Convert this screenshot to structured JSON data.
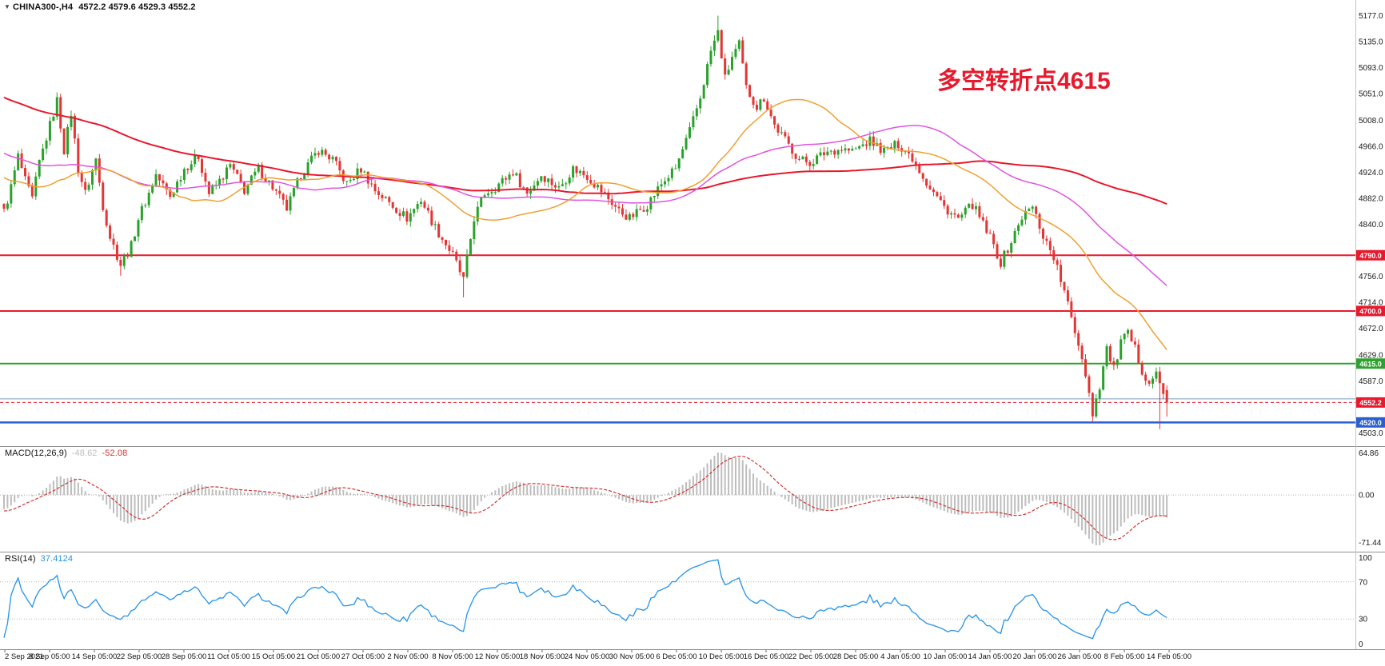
{
  "header": {
    "marker": "▼",
    "symbol": "CHINA300-,H4",
    "ohlc_text": "4572.2 4579.6 4529.3 4552.2"
  },
  "annotation": {
    "text": "多空转折点4615",
    "color": "#e8192c"
  },
  "chart_data": {
    "type": "candlestick",
    "symbol": "CHINA300",
    "timeframe": "H4",
    "last_bar": {
      "open": 4572.2,
      "high": 4579.6,
      "low": 4529.3,
      "close": 4552.2
    },
    "price_axis": {
      "range": [
        4492,
        5192
      ],
      "tick_labels": [
        "5177.0",
        "5135.0",
        "5093.0",
        "5051.0",
        "5008.0",
        "4966.0",
        "4924.0",
        "4882.0",
        "4840.0",
        "4756.0",
        "4714.0",
        "4672.0",
        "4629.0",
        "4587.0",
        "4503.0"
      ]
    },
    "horizontal_lines": [
      {
        "price": 4790.0,
        "color": "#e8192c",
        "width": 2,
        "label": "4790.0"
      },
      {
        "price": 4700.0,
        "color": "#e8192c",
        "width": 2,
        "label": "4700.0"
      },
      {
        "price": 4615.0,
        "color": "#2fa12f",
        "width": 2,
        "label": "4615.0"
      },
      {
        "price": 4558.0,
        "color": "#7b9cc4",
        "width": 1,
        "label": ""
      },
      {
        "price": 4520.0,
        "color": "#2a5fd0",
        "width": 2.5,
        "label": "4520.0"
      }
    ],
    "current_price": {
      "value": 4552.2,
      "label": "4552.2",
      "color": "#e8192c"
    },
    "time_axis_labels": [
      "2 Sep 2021",
      "8 Sep 05:00",
      "14 Sep 05:00",
      "22 Sep 05:00",
      "28 Sep 05:00",
      "11 Oct 05:00",
      "15 Oct 05:00",
      "21 Oct 05:00",
      "27 Oct 05:00",
      "2 Nov 05:00",
      "8 Nov 05:00",
      "12 Nov 05:00",
      "18 Nov 05:00",
      "24 Nov 05:00",
      "30 Nov 05:00",
      "6 Dec 05:00",
      "10 Dec 05:00",
      "16 Dec 05:00",
      "22 Dec 05:00",
      "28 Dec 05:00",
      "4 Jan 05:00",
      "10 Jan 05:00",
      "14 Jan 05:00",
      "20 Jan 05:00",
      "26 Jan 05:00",
      "8 Feb 05:00",
      "14 Feb 05:00"
    ],
    "candles": {
      "count": 330,
      "up_color": "#2aa12a",
      "down_color": "#e23535",
      "noise_amplitude": 8,
      "wick_extra": 9,
      "close_waypoints": [
        [
          0,
          4860
        ],
        [
          2,
          4900
        ],
        [
          4,
          4950
        ],
        [
          6,
          4910
        ],
        [
          8,
          4880
        ],
        [
          10,
          4940
        ],
        [
          13,
          5000
        ],
        [
          15,
          5040
        ],
        [
          17,
          4960
        ],
        [
          19,
          5020
        ],
        [
          21,
          4930
        ],
        [
          23,
          4890
        ],
        [
          26,
          4945
        ],
        [
          28,
          4870
        ],
        [
          30,
          4820
        ],
        [
          33,
          4775
        ],
        [
          36,
          4805
        ],
        [
          38,
          4850
        ],
        [
          41,
          4890
        ],
        [
          43,
          4920
        ],
        [
          47,
          4885
        ],
        [
          51,
          4930
        ],
        [
          55,
          4950
        ],
        [
          58,
          4890
        ],
        [
          61,
          4910
        ],
        [
          64,
          4935
        ],
        [
          68,
          4895
        ],
        [
          72,
          4930
        ],
        [
          76,
          4900
        ],
        [
          80,
          4865
        ],
        [
          84,
          4920
        ],
        [
          89,
          4960
        ],
        [
          93,
          4945
        ],
        [
          97,
          4905
        ],
        [
          101,
          4930
        ],
        [
          105,
          4895
        ],
        [
          109,
          4875
        ],
        [
          114,
          4850
        ],
        [
          118,
          4880
        ],
        [
          122,
          4835
        ],
        [
          127,
          4790
        ],
        [
          130,
          4750
        ],
        [
          133,
          4850
        ],
        [
          136,
          4890
        ],
        [
          139,
          4900
        ],
        [
          144,
          4925
        ],
        [
          148,
          4890
        ],
        [
          152,
          4920
        ],
        [
          157,
          4898
        ],
        [
          161,
          4930
        ],
        [
          165,
          4918
        ],
        [
          170,
          4888
        ],
        [
          174,
          4862
        ],
        [
          177,
          4850
        ],
        [
          182,
          4872
        ],
        [
          186,
          4905
        ],
        [
          190,
          4930
        ],
        [
          194,
          4990
        ],
        [
          197,
          5045
        ],
        [
          200,
          5120
        ],
        [
          202,
          5150
        ],
        [
          204,
          5075
        ],
        [
          206,
          5110
        ],
        [
          208,
          5130
        ],
        [
          210,
          5060
        ],
        [
          213,
          5030
        ],
        [
          215,
          5045
        ],
        [
          218,
          5000
        ],
        [
          222,
          4968
        ],
        [
          225,
          4945
        ],
        [
          228,
          4940
        ],
        [
          233,
          4958
        ],
        [
          237,
          4962
        ],
        [
          240,
          4958
        ],
        [
          245,
          4975
        ],
        [
          249,
          4958
        ],
        [
          253,
          4970
        ],
        [
          257,
          4948
        ],
        [
          261,
          4908
        ],
        [
          266,
          4868
        ],
        [
          270,
          4848
        ],
        [
          274,
          4872
        ],
        [
          279,
          4818
        ],
        [
          282,
          4778
        ],
        [
          285,
          4812
        ],
        [
          288,
          4852
        ],
        [
          291,
          4868
        ],
        [
          294,
          4822
        ],
        [
          297,
          4788
        ],
        [
          300,
          4730
        ],
        [
          304,
          4648
        ],
        [
          306,
          4600
        ],
        [
          308,
          4535
        ],
        [
          310,
          4580
        ],
        [
          312,
          4640
        ],
        [
          314,
          4605
        ],
        [
          316,
          4650
        ],
        [
          318,
          4662
        ],
        [
          320,
          4638
        ],
        [
          322,
          4605
        ],
        [
          324,
          4585
        ],
        [
          326,
          4598
        ],
        [
          328,
          4565
        ],
        [
          329,
          4552.2
        ]
      ],
      "spikes": [
        {
          "i": 15,
          "high": 5053
        },
        {
          "i": 33,
          "low": 4757
        },
        {
          "i": 130,
          "low": 4722
        },
        {
          "i": 202,
          "high": 5177
        },
        {
          "i": 308,
          "low": 4521
        },
        {
          "i": 327,
          "low": 4509
        }
      ]
    },
    "history_warmup": {
      "bars": 150,
      "from": 5230,
      "to": 4880,
      "wiggle": 25
    },
    "moving_averages": [
      {
        "name": "ma-slow",
        "period": 144,
        "color": "#e8192c",
        "width": 2
      },
      {
        "name": "ma-medium",
        "period": 68,
        "color": "#e054e0",
        "width": 1.5
      },
      {
        "name": "ma-fast",
        "period": 34,
        "color": "#f0a030",
        "width": 1.5
      }
    ],
    "indicators": {
      "macd": {
        "label": "MACD(12,26,9)",
        "value_main": "-48.62",
        "value_signal": "-52.08",
        "axis_labels": [
          "64.86",
          "0.00",
          "-71.44"
        ],
        "histogram_color": "#bdbdbd",
        "signal_color": "#d23535"
      },
      "rsi": {
        "label": "RSI(14)",
        "value": "37.4124",
        "axis_labels": [
          "100",
          "70",
          "30",
          "0"
        ],
        "levels": [
          70,
          30
        ],
        "line_color": "#2492e8"
      }
    }
  }
}
